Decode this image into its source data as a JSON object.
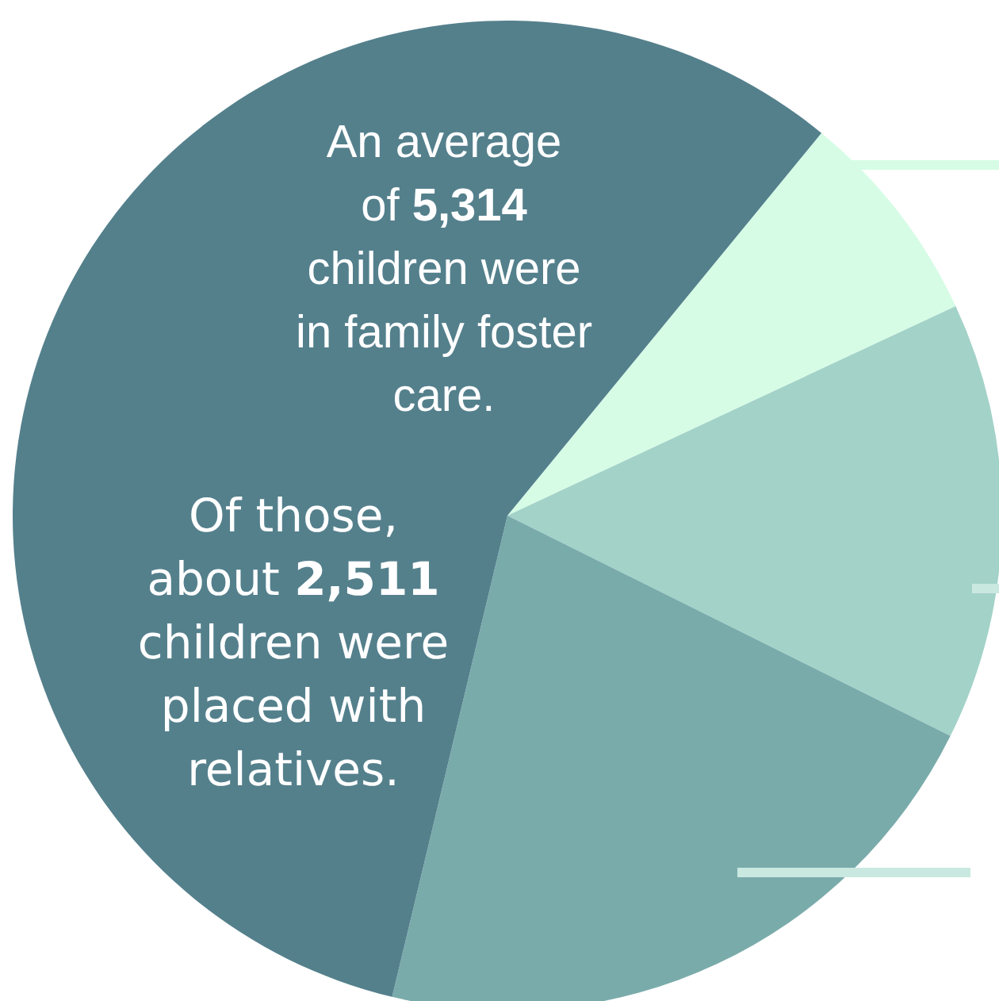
{
  "chart_data": {
    "type": "pie",
    "categories": [
      null,
      null,
      null,
      null
    ],
    "values": [
      7.1,
      14.3,
      21.4,
      57.2
    ],
    "colors": [
      "#d6fce6",
      "#a3d2c8",
      "#7aabab",
      "#54808c"
    ],
    "annotations": [
      "An average\nof 5,314\nchildren were\nin family foster\ncare.",
      "Of those,\nabout 2,511\nchildren were\nplaced with\nrelatives."
    ]
  }
}
